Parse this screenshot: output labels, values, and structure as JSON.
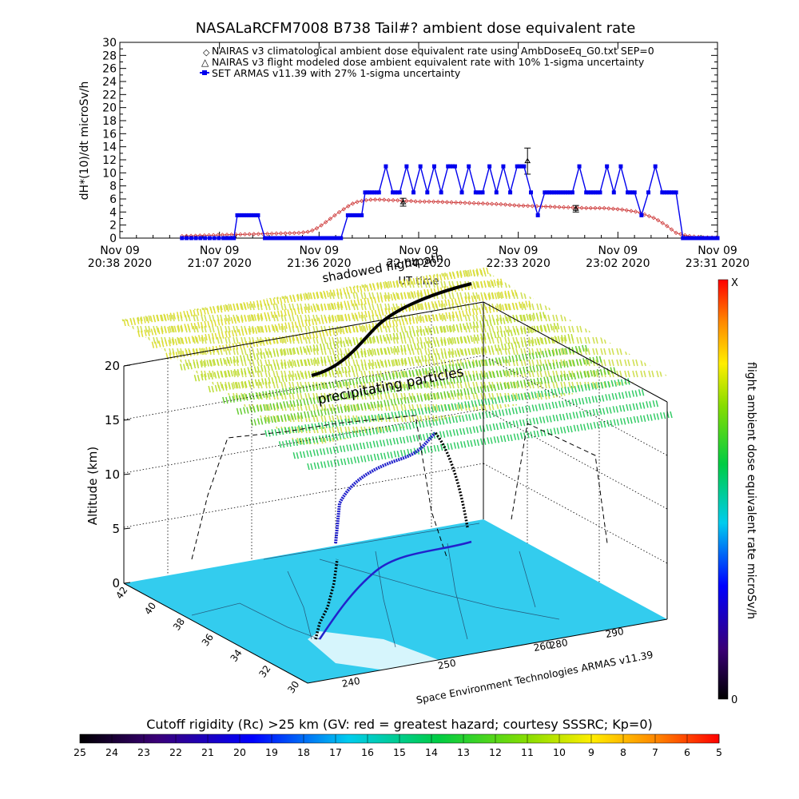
{
  "chart_data": [
    {
      "type": "line",
      "title": "NASALaRCFM7008  B738 Tail#? ambient dose equivalent rate",
      "xlabel": "UT time",
      "ylabel": "dH*(10)/dt microSv/h",
      "ylim": [
        0,
        30
      ],
      "yticks": [
        "0",
        "2",
        "4",
        "6",
        "8",
        "10",
        "12",
        "14",
        "16",
        "18",
        "20",
        "22",
        "24",
        "26",
        "28",
        "30"
      ],
      "x_ticks": [
        {
          "date": "Nov 09",
          "time": "20:38 2020"
        },
        {
          "date": "Nov 09",
          "time": "21:07 2020"
        },
        {
          "date": "Nov 09",
          "time": "21:36 2020"
        },
        {
          "date": "Nov 09",
          "time": "22:04 2020"
        },
        {
          "date": "Nov 09",
          "time": "22:33 2020"
        },
        {
          "date": "Nov 09",
          "time": "23:02 2020"
        },
        {
          "date": "Nov 09",
          "time": "23:31 2020"
        }
      ],
      "xlim_minutes_after_2038": [
        0,
        173
      ],
      "legend": [
        "NAIRAS v3 climatological ambient dose equivalent rate using AmbDoseEq_G0.txt SEP=0",
        "NAIRAS v3 flight modeled dose ambient equivalent rate with 10% 1-sigma uncertainty",
        "SET ARMAS v11.39 with 27% 1-sigma uncertainty"
      ],
      "legend_placement": "top",
      "series": [
        {
          "name": "NAIRAS v3 climatological ambient dose equivalent rate using AmbDoseEq_G0.txt SEP=0",
          "color": "#cc3333",
          "marker": "diamond",
          "x": [
            18,
            30,
            45,
            52,
            55,
            57,
            59,
            61,
            63,
            65,
            67,
            69,
            71,
            73,
            75,
            76,
            78,
            80,
            82,
            84,
            86,
            90,
            95,
            100,
            105,
            110,
            115,
            120,
            125,
            130,
            135,
            140,
            145,
            150,
            155,
            158,
            160,
            161,
            163,
            165,
            167,
            169,
            171,
            173
          ],
          "y": [
            0.3,
            0.5,
            0.7,
            0.8,
            1.0,
            1.5,
            2.2,
            3.0,
            3.8,
            4.5,
            5.2,
            5.6,
            5.8,
            5.9,
            5.9,
            5.9,
            5.8,
            5.8,
            5.7,
            5.7,
            5.6,
            5.6,
            5.5,
            5.4,
            5.3,
            5.2,
            5.0,
            4.9,
            4.8,
            4.7,
            4.6,
            4.6,
            4.4,
            4.0,
            3.0,
            2.0,
            1.2,
            0.8,
            0.5,
            0.3,
            0.2,
            0.1,
            0.1,
            0.1
          ]
        },
        {
          "name": "NAIRAS v3 flight modeled dose ambient equivalent rate with 10% 1-sigma uncertainty",
          "color": "#000000",
          "marker": "triangle",
          "x": [
            82,
            118,
            132
          ],
          "y": [
            5.5,
            11.8,
            4.5
          ],
          "err": [
            0.6,
            2.0,
            0.5
          ]
        },
        {
          "name": "SET ARMAS v11.39 with 27% 1-sigma uncertainty",
          "color": "#0000ee",
          "marker": "square",
          "x": [
            18,
            22,
            26,
            30,
            33,
            34,
            36,
            38,
            40,
            42,
            44,
            46,
            48,
            50,
            52,
            54,
            56,
            58,
            60,
            62,
            64,
            66,
            68,
            70,
            71,
            73,
            75,
            77,
            79,
            81,
            83,
            85,
            87,
            89,
            91,
            93,
            95,
            97,
            99,
            101,
            103,
            105,
            107,
            109,
            111,
            113,
            115,
            117,
            119,
            121,
            123,
            125,
            127,
            129,
            131,
            133,
            135,
            137,
            139,
            141,
            143,
            145,
            147,
            149,
            151,
            153,
            155,
            157,
            159,
            161,
            163,
            165,
            167,
            169,
            171,
            173
          ],
          "y": [
            0,
            0,
            0,
            0,
            0,
            3.5,
            3.5,
            3.5,
            3.5,
            0,
            0,
            0,
            0,
            0,
            0,
            0,
            0,
            0,
            0,
            0,
            0,
            3.5,
            3.5,
            3.5,
            7,
            7,
            7,
            11,
            7,
            7,
            11,
            7,
            11,
            7,
            11,
            7,
            11,
            11,
            7,
            11,
            7,
            7,
            11,
            7,
            11,
            7,
            11,
            11,
            7,
            3.5,
            7,
            7,
            7,
            7,
            7,
            11,
            7,
            7,
            7,
            11,
            7,
            11,
            7,
            7,
            3.5,
            7,
            11,
            7,
            7,
            7,
            0,
            0,
            0,
            0,
            0,
            0
          ]
        }
      ]
    },
    {
      "type": "scatter",
      "chart_kind": "3d-flight-track",
      "zlabel": "Altitude (km)",
      "zlim": [
        0,
        20
      ],
      "zticks": [
        "0",
        "5",
        "10",
        "15",
        "20"
      ],
      "lat_ticks": [
        "42",
        "40",
        "38",
        "36",
        "34",
        "32",
        "30"
      ],
      "lon_ticks": [
        "240",
        "250",
        "260"
      ],
      "lon_ticks_back": [
        "280",
        "290"
      ],
      "labels": {
        "shadowed_flightpath": "shadowed flightpath",
        "precipitating_particles": "precipitating particles",
        "credit": "Space Environment Technologies ARMAS v11.39"
      },
      "right_colorbar": {
        "label": "flight ambient dose equivalent rate microSv/h",
        "top": "X",
        "bottom": "0"
      },
      "bottom_colorbar": {
        "label": "Cutoff rigidity (Rc) >25 km (GV: red = greatest hazard; courtesy SSSRC; Kp=0)",
        "ticks": [
          "25",
          "24",
          "23",
          "22",
          "21",
          "20",
          "19",
          "18",
          "17",
          "16",
          "15",
          "14",
          "13",
          "12",
          "11",
          "10",
          "9",
          "8",
          "7",
          "6",
          "5"
        ]
      },
      "colors": {
        "ground": "#33ccee",
        "track": "#000000",
        "track_high": "#2222cc",
        "particles": [
          "#dddd33",
          "#bbdd33",
          "#66cc33",
          "#33cc66"
        ]
      }
    }
  ]
}
